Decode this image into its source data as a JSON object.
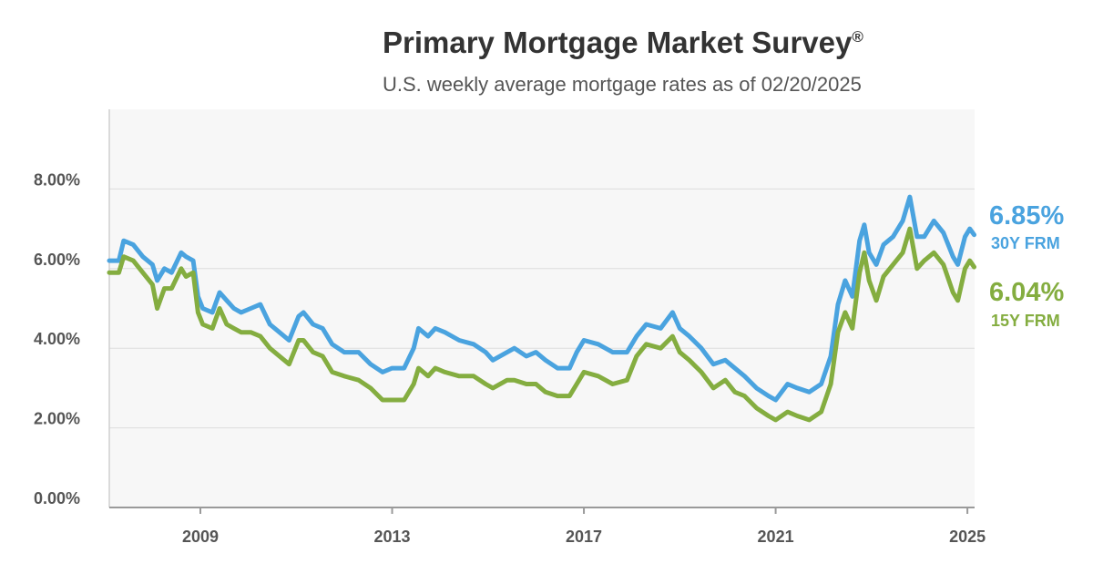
{
  "title": "Primary Mortgage Market Survey",
  "title_mark": "®",
  "subtitle": "U.S. weekly average mortgage rates as of 02/20/2025",
  "chart_data": {
    "type": "line",
    "x_unit": "year",
    "y_unit": "percent",
    "xlim": [
      2007.1,
      2025.15
    ],
    "ylim": [
      0,
      10
    ],
    "y_ticks": [
      0,
      2,
      4,
      6,
      8
    ],
    "y_tick_labels": [
      "0.00%",
      "2.00%",
      "4.00%",
      "6.00%",
      "8.00%"
    ],
    "x_ticks": [
      2009,
      2013,
      2017,
      2021,
      2025
    ],
    "x_tick_labels": [
      "2009",
      "2013",
      "2017",
      "2021",
      "2025"
    ],
    "grid": "horizontal",
    "background": "#f7f7f7",
    "series": [
      {
        "name": "30Y FRM",
        "latest_label": "6.85%",
        "color": "#4aa3df",
        "points": [
          [
            2007.1,
            6.2
          ],
          [
            2007.3,
            6.2
          ],
          [
            2007.4,
            6.7
          ],
          [
            2007.6,
            6.6
          ],
          [
            2007.8,
            6.3
          ],
          [
            2008.0,
            6.1
          ],
          [
            2008.1,
            5.7
          ],
          [
            2008.25,
            6.0
          ],
          [
            2008.4,
            5.9
          ],
          [
            2008.6,
            6.4
          ],
          [
            2008.7,
            6.3
          ],
          [
            2008.85,
            6.2
          ],
          [
            2008.95,
            5.3
          ],
          [
            2009.05,
            5.0
          ],
          [
            2009.25,
            4.9
          ],
          [
            2009.4,
            5.4
          ],
          [
            2009.55,
            5.2
          ],
          [
            2009.7,
            5.0
          ],
          [
            2009.85,
            4.9
          ],
          [
            2010.05,
            5.0
          ],
          [
            2010.25,
            5.1
          ],
          [
            2010.45,
            4.6
          ],
          [
            2010.65,
            4.4
          ],
          [
            2010.85,
            4.2
          ],
          [
            2011.05,
            4.8
          ],
          [
            2011.15,
            4.9
          ],
          [
            2011.35,
            4.6
          ],
          [
            2011.55,
            4.5
          ],
          [
            2011.75,
            4.1
          ],
          [
            2012.0,
            3.9
          ],
          [
            2012.3,
            3.9
          ],
          [
            2012.55,
            3.6
          ],
          [
            2012.8,
            3.4
          ],
          [
            2013.0,
            3.5
          ],
          [
            2013.25,
            3.5
          ],
          [
            2013.45,
            4.0
          ],
          [
            2013.55,
            4.5
          ],
          [
            2013.75,
            4.3
          ],
          [
            2013.9,
            4.5
          ],
          [
            2014.1,
            4.4
          ],
          [
            2014.4,
            4.2
          ],
          [
            2014.7,
            4.1
          ],
          [
            2014.95,
            3.9
          ],
          [
            2015.1,
            3.7
          ],
          [
            2015.4,
            3.9
          ],
          [
            2015.55,
            4.0
          ],
          [
            2015.8,
            3.8
          ],
          [
            2016.0,
            3.9
          ],
          [
            2016.2,
            3.7
          ],
          [
            2016.45,
            3.5
          ],
          [
            2016.7,
            3.5
          ],
          [
            2016.85,
            3.9
          ],
          [
            2017.0,
            4.2
          ],
          [
            2017.3,
            4.1
          ],
          [
            2017.6,
            3.9
          ],
          [
            2017.9,
            3.9
          ],
          [
            2018.1,
            4.3
          ],
          [
            2018.3,
            4.6
          ],
          [
            2018.6,
            4.5
          ],
          [
            2018.85,
            4.9
          ],
          [
            2019.0,
            4.5
          ],
          [
            2019.2,
            4.3
          ],
          [
            2019.45,
            4.0
          ],
          [
            2019.7,
            3.6
          ],
          [
            2019.95,
            3.7
          ],
          [
            2020.15,
            3.5
          ],
          [
            2020.35,
            3.3
          ],
          [
            2020.6,
            3.0
          ],
          [
            2020.85,
            2.8
          ],
          [
            2021.0,
            2.7
          ],
          [
            2021.25,
            3.1
          ],
          [
            2021.45,
            3.0
          ],
          [
            2021.7,
            2.9
          ],
          [
            2021.95,
            3.1
          ],
          [
            2022.15,
            3.8
          ],
          [
            2022.3,
            5.1
          ],
          [
            2022.45,
            5.7
          ],
          [
            2022.6,
            5.3
          ],
          [
            2022.75,
            6.7
          ],
          [
            2022.85,
            7.1
          ],
          [
            2022.95,
            6.4
          ],
          [
            2023.1,
            6.1
          ],
          [
            2023.25,
            6.6
          ],
          [
            2023.45,
            6.8
          ],
          [
            2023.65,
            7.2
          ],
          [
            2023.8,
            7.8
          ],
          [
            2023.95,
            6.8
          ],
          [
            2024.1,
            6.8
          ],
          [
            2024.3,
            7.2
          ],
          [
            2024.5,
            6.9
          ],
          [
            2024.7,
            6.3
          ],
          [
            2024.8,
            6.1
          ],
          [
            2024.95,
            6.8
          ],
          [
            2025.05,
            7.0
          ],
          [
            2025.14,
            6.85
          ]
        ]
      },
      {
        "name": "15Y FRM",
        "latest_label": "6.04%",
        "color": "#84ad40",
        "points": [
          [
            2007.1,
            5.9
          ],
          [
            2007.3,
            5.9
          ],
          [
            2007.4,
            6.3
          ],
          [
            2007.6,
            6.2
          ],
          [
            2007.8,
            5.9
          ],
          [
            2008.0,
            5.6
          ],
          [
            2008.1,
            5.0
          ],
          [
            2008.25,
            5.5
          ],
          [
            2008.4,
            5.5
          ],
          [
            2008.6,
            6.0
          ],
          [
            2008.7,
            5.8
          ],
          [
            2008.85,
            5.9
          ],
          [
            2008.95,
            4.9
          ],
          [
            2009.05,
            4.6
          ],
          [
            2009.25,
            4.5
          ],
          [
            2009.4,
            5.0
          ],
          [
            2009.55,
            4.6
          ],
          [
            2009.7,
            4.5
          ],
          [
            2009.85,
            4.4
          ],
          [
            2010.05,
            4.4
          ],
          [
            2010.25,
            4.3
          ],
          [
            2010.45,
            4.0
          ],
          [
            2010.65,
            3.8
          ],
          [
            2010.85,
            3.6
          ],
          [
            2011.05,
            4.2
          ],
          [
            2011.15,
            4.2
          ],
          [
            2011.35,
            3.9
          ],
          [
            2011.55,
            3.8
          ],
          [
            2011.75,
            3.4
          ],
          [
            2012.0,
            3.3
          ],
          [
            2012.3,
            3.2
          ],
          [
            2012.55,
            3.0
          ],
          [
            2012.8,
            2.7
          ],
          [
            2013.0,
            2.7
          ],
          [
            2013.25,
            2.7
          ],
          [
            2013.45,
            3.1
          ],
          [
            2013.55,
            3.5
          ],
          [
            2013.75,
            3.3
          ],
          [
            2013.9,
            3.5
          ],
          [
            2014.1,
            3.4
          ],
          [
            2014.4,
            3.3
          ],
          [
            2014.7,
            3.3
          ],
          [
            2014.95,
            3.1
          ],
          [
            2015.1,
            3.0
          ],
          [
            2015.4,
            3.2
          ],
          [
            2015.55,
            3.2
          ],
          [
            2015.8,
            3.1
          ],
          [
            2016.0,
            3.1
          ],
          [
            2016.2,
            2.9
          ],
          [
            2016.45,
            2.8
          ],
          [
            2016.7,
            2.8
          ],
          [
            2016.85,
            3.1
          ],
          [
            2017.0,
            3.4
          ],
          [
            2017.3,
            3.3
          ],
          [
            2017.6,
            3.1
          ],
          [
            2017.9,
            3.2
          ],
          [
            2018.1,
            3.8
          ],
          [
            2018.3,
            4.1
          ],
          [
            2018.6,
            4.0
          ],
          [
            2018.85,
            4.3
          ],
          [
            2019.0,
            3.9
          ],
          [
            2019.2,
            3.7
          ],
          [
            2019.45,
            3.4
          ],
          [
            2019.7,
            3.0
          ],
          [
            2019.95,
            3.2
          ],
          [
            2020.15,
            2.9
          ],
          [
            2020.35,
            2.8
          ],
          [
            2020.6,
            2.5
          ],
          [
            2020.85,
            2.3
          ],
          [
            2021.0,
            2.2
          ],
          [
            2021.25,
            2.4
          ],
          [
            2021.45,
            2.3
          ],
          [
            2021.7,
            2.2
          ],
          [
            2021.95,
            2.4
          ],
          [
            2022.15,
            3.1
          ],
          [
            2022.3,
            4.4
          ],
          [
            2022.45,
            4.9
          ],
          [
            2022.6,
            4.5
          ],
          [
            2022.75,
            5.9
          ],
          [
            2022.85,
            6.4
          ],
          [
            2022.95,
            5.7
          ],
          [
            2023.1,
            5.2
          ],
          [
            2023.25,
            5.8
          ],
          [
            2023.45,
            6.1
          ],
          [
            2023.65,
            6.4
          ],
          [
            2023.8,
            7.0
          ],
          [
            2023.95,
            6.0
          ],
          [
            2024.1,
            6.2
          ],
          [
            2024.3,
            6.4
          ],
          [
            2024.5,
            6.1
          ],
          [
            2024.7,
            5.4
          ],
          [
            2024.8,
            5.2
          ],
          [
            2024.95,
            6.0
          ],
          [
            2025.05,
            6.2
          ],
          [
            2025.14,
            6.04
          ]
        ]
      }
    ]
  }
}
